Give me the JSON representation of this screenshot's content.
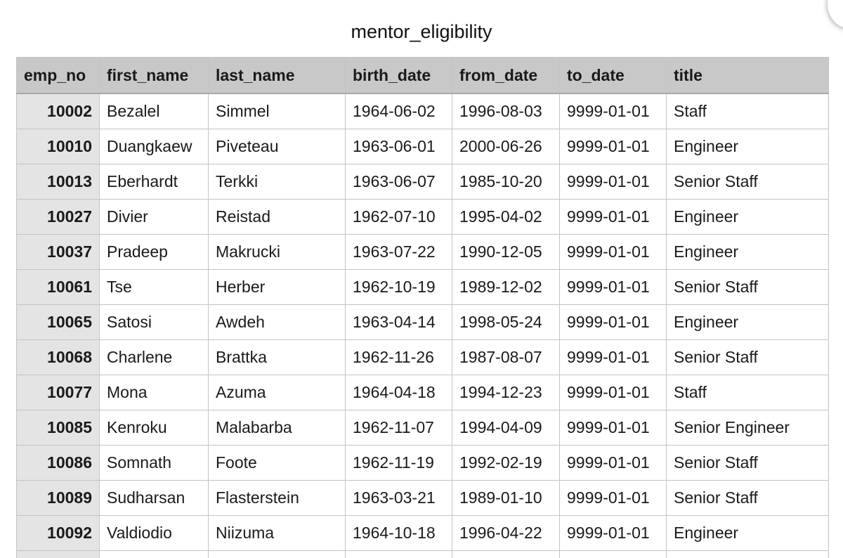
{
  "sheet": {
    "title": "mentor_eligibility"
  },
  "columns": [
    "emp_no",
    "first_name",
    "last_name",
    "birth_date",
    "from_date",
    "to_date",
    "title"
  ],
  "rows": [
    [
      "10002",
      "Bezalel",
      "Simmel",
      "1964-06-02",
      "1996-08-03",
      "9999-01-01",
      "Staff"
    ],
    [
      "10010",
      "Duangkaew",
      "Piveteau",
      "1963-06-01",
      "2000-06-26",
      "9999-01-01",
      "Engineer"
    ],
    [
      "10013",
      "Eberhardt",
      "Terkki",
      "1963-06-07",
      "1985-10-20",
      "9999-01-01",
      "Senior Staff"
    ],
    [
      "10027",
      "Divier",
      "Reistad",
      "1962-07-10",
      "1995-04-02",
      "9999-01-01",
      "Engineer"
    ],
    [
      "10037",
      "Pradeep",
      "Makrucki",
      "1963-07-22",
      "1990-12-05",
      "9999-01-01",
      "Engineer"
    ],
    [
      "10061",
      "Tse",
      "Herber",
      "1962-10-19",
      "1989-12-02",
      "9999-01-01",
      "Senior Staff"
    ],
    [
      "10065",
      "Satosi",
      "Awdeh",
      "1963-04-14",
      "1998-05-24",
      "9999-01-01",
      "Engineer"
    ],
    [
      "10068",
      "Charlene",
      "Brattka",
      "1962-11-26",
      "1987-08-07",
      "9999-01-01",
      "Senior Staff"
    ],
    [
      "10077",
      "Mona",
      "Azuma",
      "1964-04-18",
      "1994-12-23",
      "9999-01-01",
      "Staff"
    ],
    [
      "10085",
      "Kenroku",
      "Malabarba",
      "1962-11-07",
      "1994-04-09",
      "9999-01-01",
      "Senior Engineer"
    ],
    [
      "10086",
      "Somnath",
      "Foote",
      "1962-11-19",
      "1992-02-19",
      "9999-01-01",
      "Senior Staff"
    ],
    [
      "10089",
      "Sudharsan",
      "Flasterstein",
      "1963-03-21",
      "1989-01-10",
      "9999-01-01",
      "Senior Staff"
    ],
    [
      "10092",
      "Valdiodio",
      "Niizuma",
      "1964-10-18",
      "1996-04-22",
      "9999-01-01",
      "Engineer"
    ]
  ]
}
